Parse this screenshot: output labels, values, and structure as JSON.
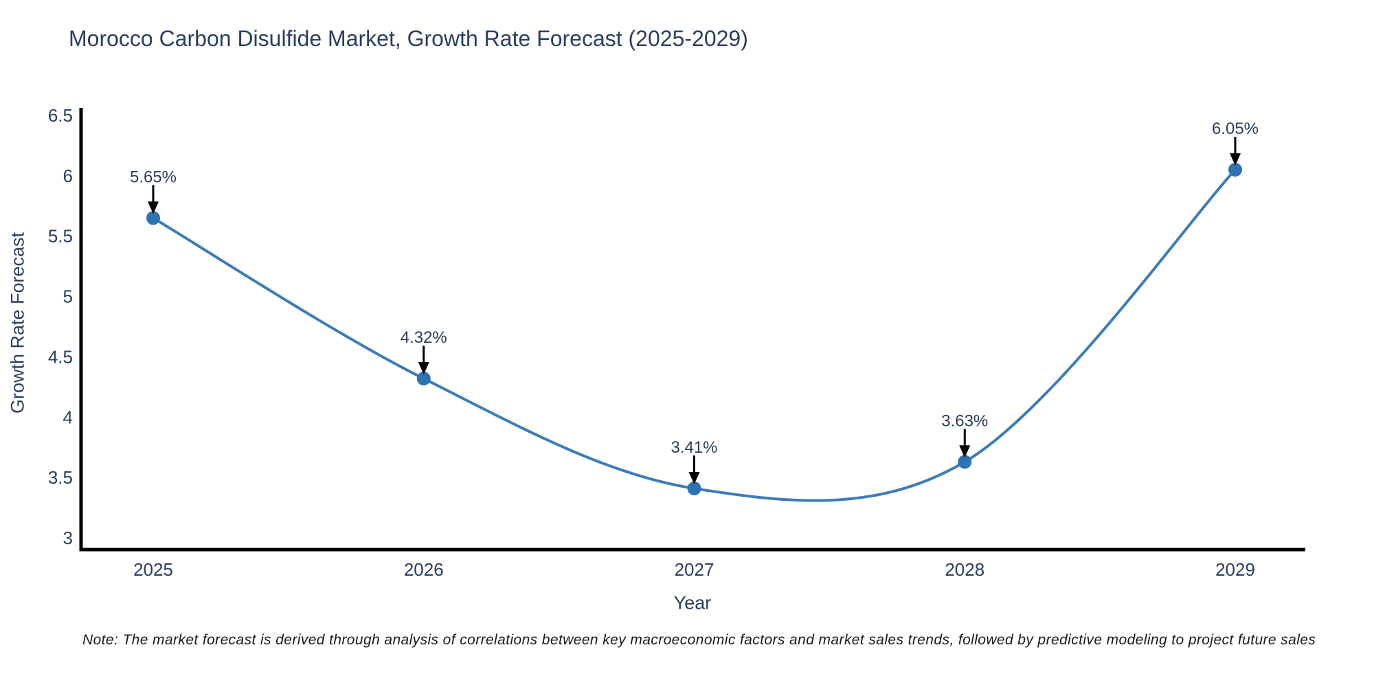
{
  "title": "Morocco Carbon Disulfide Market, Growth Rate Forecast (2025-2029)",
  "note": "Note: The market forecast is derived through analysis of correlations between key macroeconomic factors and market sales trends, followed by predictive modeling to project future sales",
  "chart_data": {
    "type": "line",
    "title": "Morocco Carbon Disulfide Market, Growth Rate Forecast (2025-2029)",
    "xlabel": "Year",
    "ylabel": "Growth Rate Forecast",
    "x": [
      2025,
      2026,
      2027,
      2028,
      2029
    ],
    "series": [
      {
        "name": "Growth Rate Forecast",
        "values": [
          5.65,
          4.32,
          3.41,
          3.63,
          6.05
        ],
        "point_labels": [
          "5.65%",
          "4.32%",
          "3.41%",
          "3.63%",
          "6.05%"
        ]
      }
    ],
    "x_tick_labels": [
      "2025",
      "2026",
      "2027",
      "2028",
      "2029"
    ],
    "y_tick_labels": [
      "3",
      "3.5",
      "4",
      "4.5",
      "5",
      "5.5",
      "6",
      "6.5"
    ],
    "y_ticks": [
      3,
      3.5,
      4,
      4.5,
      5,
      5.5,
      6,
      6.5
    ],
    "ylim": [
      3,
      6.5
    ],
    "line_shape": "spline",
    "grid": false,
    "legend_position": "none",
    "annotations_have_arrows": true,
    "colors": {
      "line": "#3c7cb8",
      "marker": "#2d72b2",
      "axis": "#000000",
      "tick_text": "#2a3f5f",
      "annotation_text": "#2a3f5f",
      "annotation_arrow": "#000000",
      "background": "#ffffff"
    }
  }
}
